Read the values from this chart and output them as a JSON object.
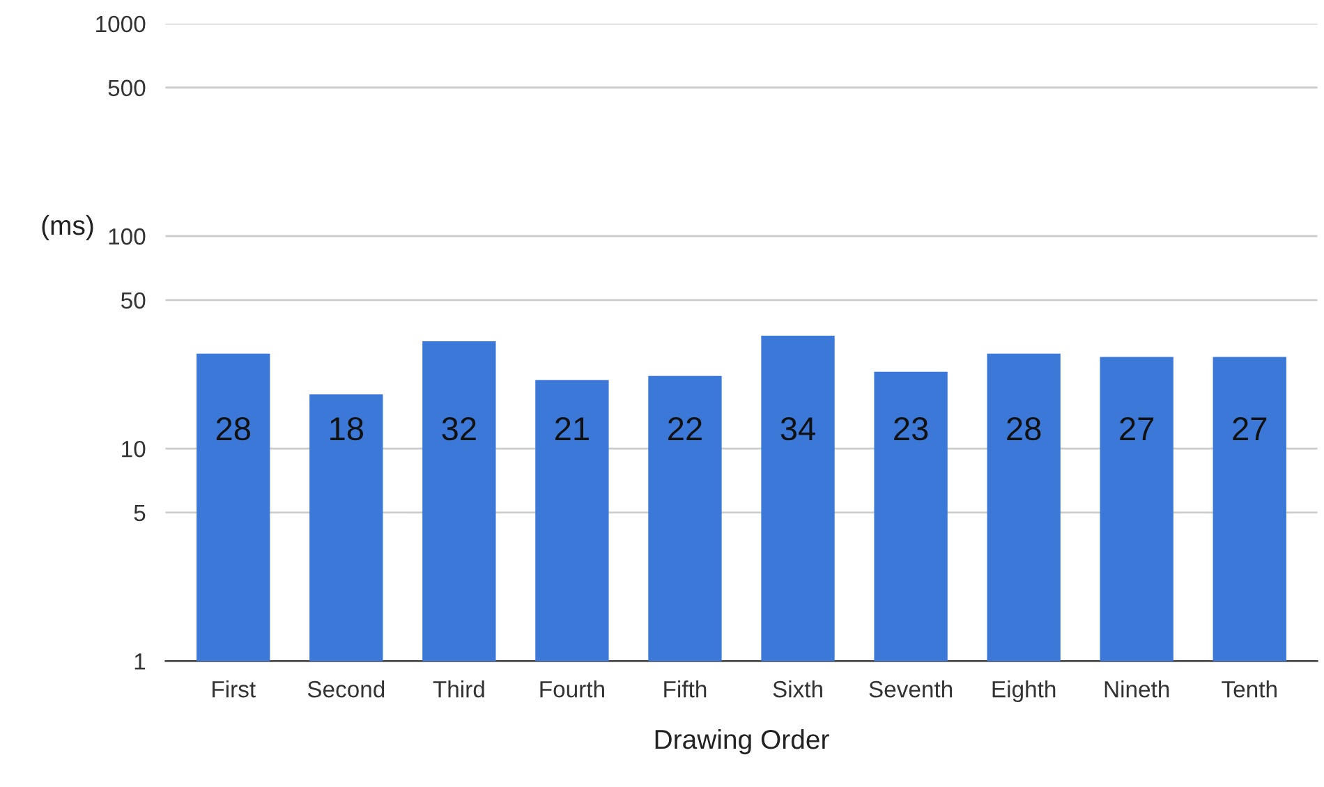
{
  "chart_data": {
    "type": "bar",
    "xlabel": "Drawing Order",
    "ylabel": "(ms)",
    "categories": [
      "First",
      "Second",
      "Third",
      "Fourth",
      "Fifth",
      "Sixth",
      "Seventh",
      "Eighth",
      "Nineth",
      "Tenth"
    ],
    "values": [
      28,
      18,
      32,
      21,
      22,
      34,
      23,
      28,
      27,
      27
    ],
    "color": "#3c78d8",
    "log": "y",
    "ylim": [
      1,
      1000
    ],
    "yticks": [
      1,
      5,
      10,
      50,
      100,
      500,
      1000
    ],
    "grid": "y",
    "data_labels": true,
    "legend": false
  }
}
